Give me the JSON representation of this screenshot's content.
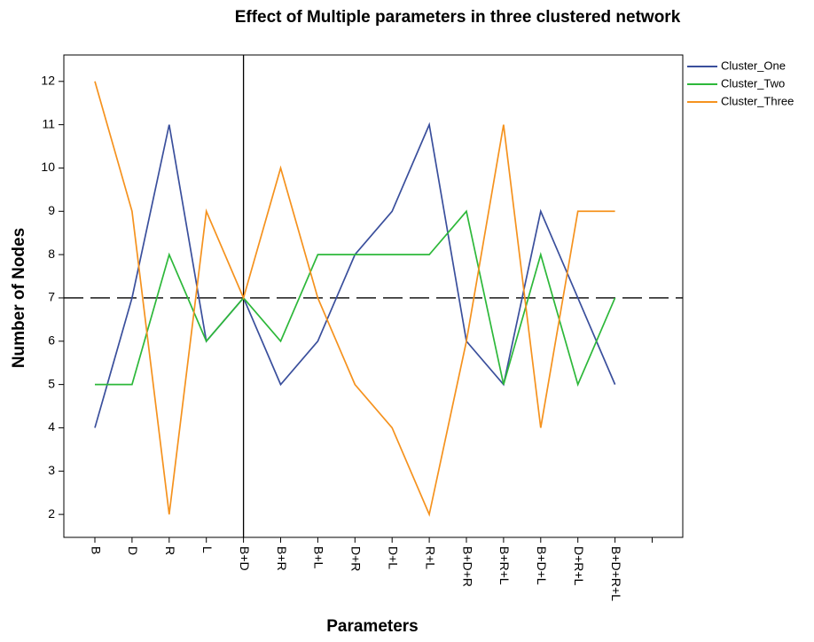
{
  "chart_data": {
    "type": "line",
    "title": "Effect of Multiple parameters in three clustered network",
    "x_label": "Parameters",
    "y_label": "Number of Nodes",
    "categories": [
      "B",
      "D",
      "R",
      "L",
      "B+D",
      "B+R",
      "B+L",
      "D+R",
      "D+L",
      "R+L",
      "B+D+R",
      "B+R+L",
      "B+D+L",
      "D+R+L",
      "B+D+R+L",
      null
    ],
    "series": [
      {
        "name": "Cluster_One",
        "color": "#3a4f9c",
        "values": [
          4,
          7,
          11,
          6,
          7,
          5,
          6,
          8,
          9,
          11,
          6,
          5,
          9,
          7,
          5,
          null
        ]
      },
      {
        "name": "Cluster_Two",
        "color": "#2db83a",
        "values": [
          5,
          5,
          8,
          6,
          7,
          6,
          8,
          8,
          8,
          8,
          9,
          5,
          8,
          5,
          7,
          null
        ]
      },
      {
        "name": "Cluster_Three",
        "color": "#f5921e",
        "values": [
          12,
          9,
          2,
          9,
          7,
          10,
          7,
          5,
          4,
          2,
          6,
          11,
          4,
          9,
          9,
          null
        ]
      }
    ],
    "ylim": [
      1.47,
      12.61
    ],
    "yticks": [
      2,
      3,
      4,
      5,
      6,
      7,
      8,
      9,
      10,
      11,
      12
    ],
    "reference_y": 7,
    "reference_category_index": 4,
    "legend": "outside-top-right"
  }
}
